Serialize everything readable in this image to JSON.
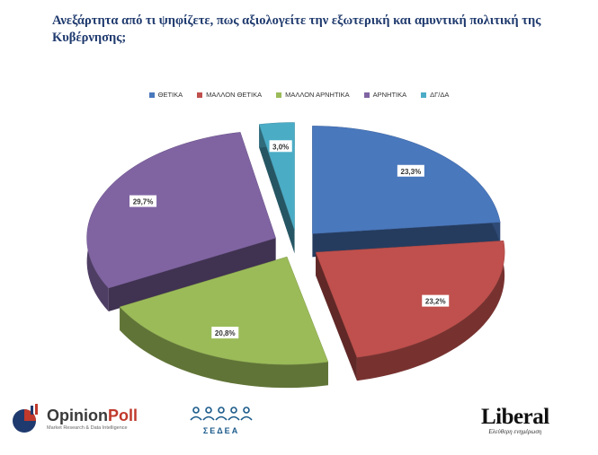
{
  "chart_data": {
    "type": "pie",
    "title": "Ανεξάρτητα από τι ψηφίζετε, πως αξιολογείτε την εξωτερική και αμυντική πολιτική της Κυβέρνησης;",
    "categories": [
      "ΘΕΤΙΚΑ",
      "ΜΑΛΛΟΝ ΘΕΤΙΚΑ",
      "ΜΑΛΛΟΝ ΑΡΝΗΤΙΚΑ",
      "ΑΡΝΗΤΙΚΑ",
      "ΔΓ/ΔΑ"
    ],
    "values": [
      23.3,
      23.2,
      20.8,
      29.7,
      3.0
    ],
    "value_labels": [
      "23,3%",
      "23,2%",
      "20,8%",
      "29,7%",
      "3,0%"
    ],
    "colors": [
      "#4a78bd",
      "#c0504d",
      "#9bbb59",
      "#8064a2",
      "#4bacc6"
    ],
    "legend_position": "top",
    "style": "3d-exploded"
  },
  "footer": {
    "opinionpoll": {
      "name_part1": "Opinion",
      "name_part2": "Poll",
      "tagline": "Market Research & Data Intelligence"
    },
    "sedea": {
      "name": "ΣΕΔΕΑ"
    },
    "liberal": {
      "name": "Liberal",
      "tagline": "Ελεύθερη ενημέρωση"
    }
  }
}
